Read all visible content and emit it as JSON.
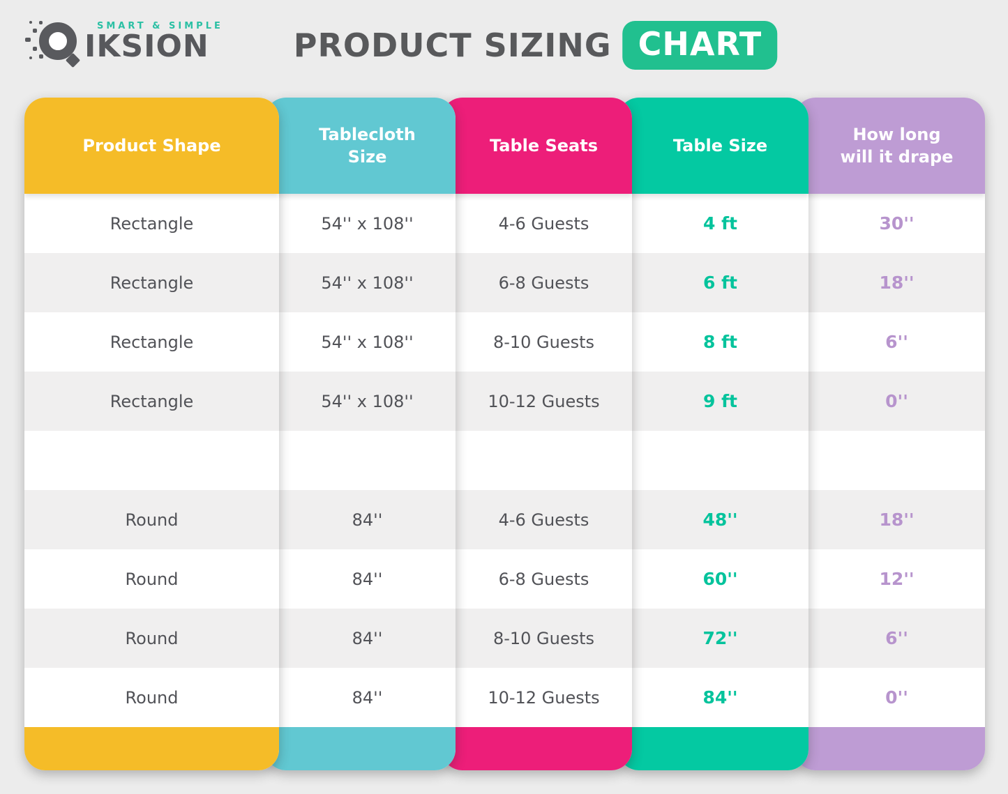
{
  "logo": {
    "tagline": "SMART & SIMPLE",
    "brand": "IKSION"
  },
  "title": {
    "text": "PRODUCT SIZING",
    "badge": "CHART"
  },
  "colors": {
    "background": "#ececec",
    "title_text": "#58595b",
    "badge_green": "#21c08f",
    "tagline_teal": "#2bc0a4",
    "cell_text": "#515257",
    "row_alt": "#f0efef",
    "value_green": "#04c39c",
    "value_purple": "#b794cd"
  },
  "chart_data": {
    "type": "table",
    "title": "PRODUCT SIZING CHART",
    "columns": [
      {
        "key": "shape",
        "label": "Product Shape",
        "color": "#f5bc28"
      },
      {
        "key": "cloth",
        "label": "Tablecloth\nSize",
        "color": "#61c8d2"
      },
      {
        "key": "seats",
        "label": "Table Seats",
        "color": "#ed1e79"
      },
      {
        "key": "size",
        "label": "Table Size",
        "color": "#04c9a2"
      },
      {
        "key": "drape",
        "label": "How long\nwill it drape",
        "color": "#be9cd4"
      }
    ],
    "rows": [
      {
        "shape": "Rectangle",
        "cloth": "54'' x 108''",
        "seats": "4-6 Guests",
        "size": "4 ft",
        "drape": "30''"
      },
      {
        "shape": "Rectangle",
        "cloth": "54'' x 108''",
        "seats": "6-8 Guests",
        "size": "6 ft",
        "drape": "18''"
      },
      {
        "shape": "Rectangle",
        "cloth": "54'' x 108''",
        "seats": "8-10 Guests",
        "size": "8 ft",
        "drape": "6''"
      },
      {
        "shape": "Rectangle",
        "cloth": "54'' x 108''",
        "seats": "10-12 Guests",
        "size": "9 ft",
        "drape": "0''"
      },
      {
        "spacer": true
      },
      {
        "shape": "Round",
        "cloth": "84''",
        "seats": "4-6 Guests",
        "size": "48''",
        "drape": "18''"
      },
      {
        "shape": "Round",
        "cloth": "84''",
        "seats": "6-8 Guests",
        "size": "60''",
        "drape": "12''"
      },
      {
        "shape": "Round",
        "cloth": "84''",
        "seats": "8-10 Guests",
        "size": "72''",
        "drape": "6''"
      },
      {
        "shape": "Round",
        "cloth": "84''",
        "seats": "10-12 Guests",
        "size": "84''",
        "drape": "0''"
      }
    ]
  }
}
